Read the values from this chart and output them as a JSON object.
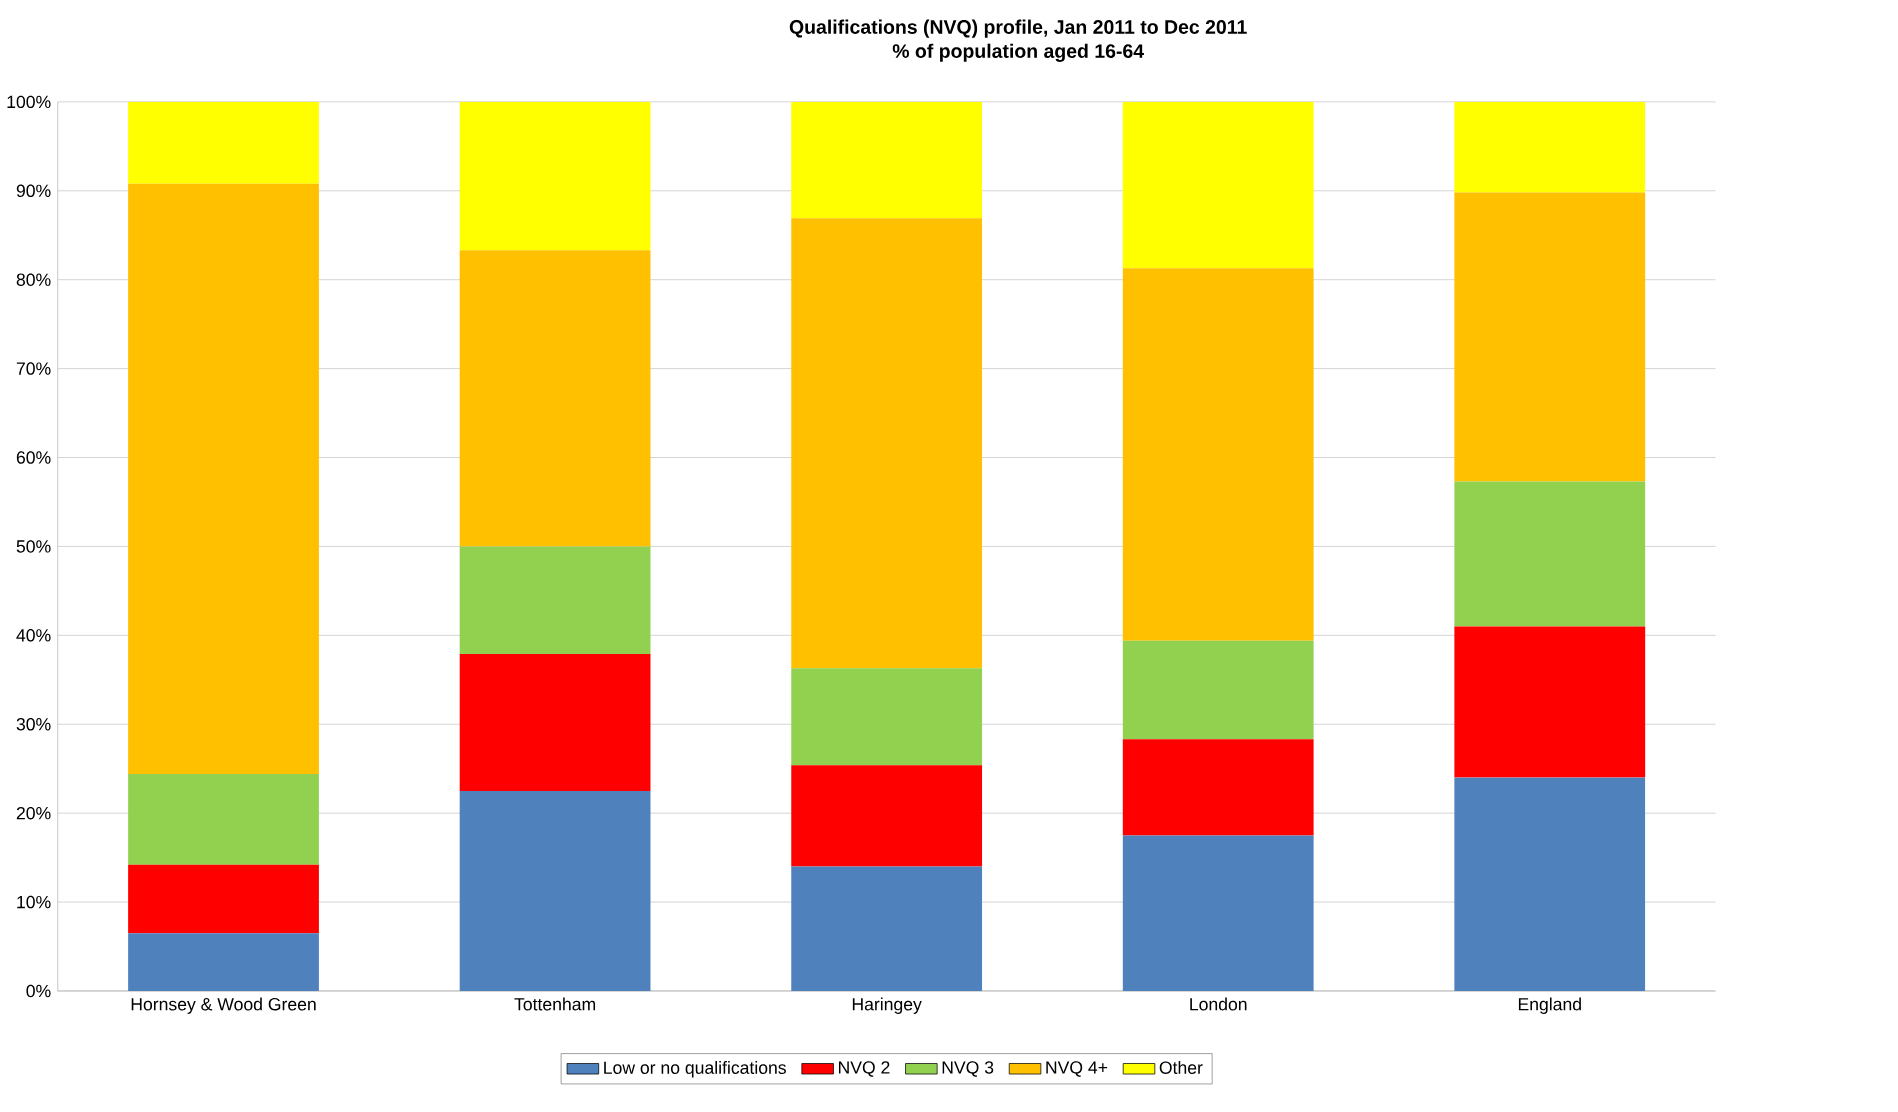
{
  "chart_data": {
    "type": "bar",
    "stacked": true,
    "title": "Qualifications (NVQ) profile, Jan 2011 to Dec 2011",
    "subtitle": "% of population aged 16-64",
    "categories": [
      "Hornsey & Wood Green",
      "Tottenham",
      "Haringey",
      "London",
      "England"
    ],
    "series": [
      {
        "name": "Low or no qualifications",
        "color": "#4f81bd",
        "values": [
          6.5,
          22.5,
          14.0,
          17.5,
          24.0
        ]
      },
      {
        "name": "NVQ 2",
        "color": "#ff0000",
        "values": [
          7.7,
          15.4,
          11.4,
          10.8,
          17.0
        ]
      },
      {
        "name": "NVQ 3",
        "color": "#92d050",
        "values": [
          10.2,
          12.1,
          10.9,
          11.1,
          16.3
        ]
      },
      {
        "name": "NVQ 4+",
        "color": "#ffc000",
        "values": [
          66.4,
          33.3,
          50.6,
          41.9,
          32.5
        ]
      },
      {
        "name": "Other",
        "color": "#ffff00",
        "values": [
          9.2,
          16.7,
          13.1,
          18.7,
          10.2
        ]
      }
    ],
    "ylim": [
      0,
      100
    ],
    "yticks": [
      {
        "value": 0,
        "label": "0%"
      },
      {
        "value": 10,
        "label": "10%"
      },
      {
        "value": 20,
        "label": "20%"
      },
      {
        "value": 30,
        "label": "30%"
      },
      {
        "value": 40,
        "label": "40%"
      },
      {
        "value": 50,
        "label": "50%"
      },
      {
        "value": 60,
        "label": "60%"
      },
      {
        "value": 70,
        "label": "70%"
      },
      {
        "value": 80,
        "label": "80%"
      },
      {
        "value": 90,
        "label": "90%"
      },
      {
        "value": 100,
        "label": "100%"
      }
    ],
    "grid": "y",
    "legend": "bottom"
  }
}
